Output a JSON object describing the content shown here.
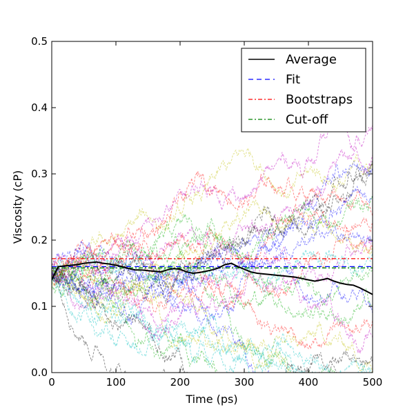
{
  "chart_data": {
    "type": "line",
    "xlabel": "Time (ps)",
    "ylabel": "Viscosity (cP)",
    "xlim": [
      0,
      500
    ],
    "ylim": [
      0.0,
      0.5
    ],
    "x_ticks": [
      "0",
      "100",
      "200",
      "300",
      "400",
      "500"
    ],
    "y_ticks": [
      "0.0",
      "0.1",
      "0.2",
      "0.3",
      "0.4",
      "0.5"
    ],
    "grid": false,
    "legend_position": "top-right",
    "legend": [
      {
        "label": "Average",
        "style": "solid",
        "color": "#000000"
      },
      {
        "label": "Fit",
        "style": "dashed",
        "color": "#0000ff"
      },
      {
        "label": "Bootstraps",
        "style": "dashdot",
        "color": "#ff0000"
      },
      {
        "label": "Cut-off",
        "style": "dashdot",
        "color": "#008000"
      }
    ],
    "series": [
      {
        "name": "Average",
        "color": "#000000",
        "x": [
          0,
          10,
          20,
          30,
          40,
          50,
          60,
          70,
          80,
          90,
          100,
          110,
          120,
          130,
          140,
          150,
          160,
          170,
          180,
          190,
          200,
          210,
          220,
          230,
          240,
          250,
          260,
          270,
          280,
          290,
          300,
          310,
          320,
          330,
          340,
          350,
          360,
          370,
          380,
          390,
          400,
          410,
          420,
          430,
          440,
          450,
          460,
          470,
          480,
          490,
          500
        ],
        "y": [
          0.14,
          0.16,
          0.161,
          0.162,
          0.163,
          0.165,
          0.166,
          0.167,
          0.165,
          0.164,
          0.162,
          0.16,
          0.157,
          0.155,
          0.155,
          0.154,
          0.153,
          0.152,
          0.155,
          0.157,
          0.156,
          0.152,
          0.15,
          0.151,
          0.153,
          0.155,
          0.158,
          0.163,
          0.165,
          0.16,
          0.156,
          0.152,
          0.15,
          0.149,
          0.148,
          0.147,
          0.146,
          0.145,
          0.144,
          0.142,
          0.14,
          0.138,
          0.14,
          0.142,
          0.138,
          0.135,
          0.133,
          0.132,
          0.128,
          0.123,
          0.118
        ]
      },
      {
        "name": "Fit",
        "color": "#0000ff",
        "x": [
          0,
          500
        ],
        "y": [
          0.16,
          0.16
        ]
      },
      {
        "name": "Bootstraps",
        "color": "#ff0000",
        "x": [
          0,
          500
        ],
        "y": [
          0.172,
          0.172
        ]
      },
      {
        "name": "Cut-off",
        "color": "#008000",
        "x": [
          0,
          500
        ],
        "y": [
          0.158,
          0.158
        ]
      }
    ],
    "trajectories": {
      "count": 30,
      "x_start": 0,
      "x_end": 500,
      "start_value": 0.15,
      "colors": [
        "#0000ff",
        "#00aa00",
        "#ff0000",
        "#00bfbf",
        "#bf00bf",
        "#bfbf00",
        "#000000"
      ]
    }
  }
}
